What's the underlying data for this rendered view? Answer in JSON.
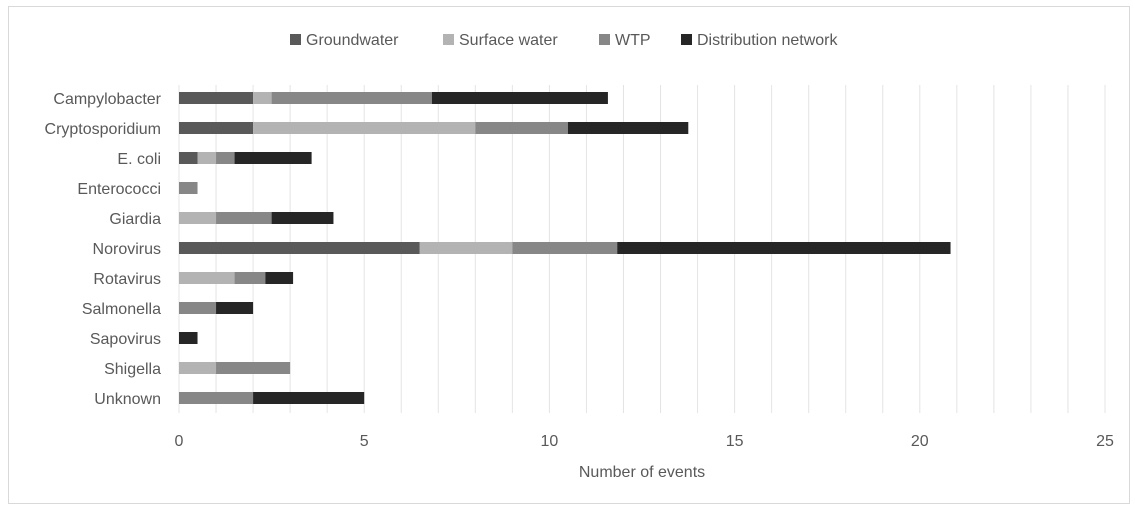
{
  "chart_data": {
    "type": "bar",
    "orientation": "horizontal",
    "stacked": true,
    "title": "",
    "xlabel": "Number of events",
    "ylabel": "",
    "xlim": [
      0,
      25
    ],
    "x_ticks": [
      0,
      5,
      10,
      15,
      20,
      25
    ],
    "grid": "vertical",
    "legend_position": "top",
    "categories": [
      "Campylobacter",
      "Cryptosporidium",
      "E. coli",
      "Enterococci",
      "Giardia",
      "Norovirus",
      "Rotavirus",
      "Salmonella",
      "Sapovirus",
      "Shigella",
      "Unknown"
    ],
    "series": [
      {
        "name": "Groundwater",
        "color": "#595959",
        "values": [
          2,
          2,
          0.5,
          0,
          0,
          6.5,
          0,
          0,
          0,
          0,
          0
        ]
      },
      {
        "name": "Surface water",
        "color": "#b3b3b3",
        "values": [
          0.5,
          6,
          0.5,
          0,
          1,
          2.5,
          1.5,
          0,
          0,
          1,
          0
        ]
      },
      {
        "name": "WTP",
        "color": "#878787",
        "values": [
          4.33,
          2.5,
          0.5,
          0.5,
          1.5,
          2.83,
          0.83,
          1,
          0,
          2,
          2
        ]
      },
      {
        "name": "Distribution network",
        "color": "#262626",
        "values": [
          4.75,
          3.25,
          2.08,
          0,
          1.67,
          9,
          0.75,
          1,
          0.5,
          0,
          3
        ]
      }
    ]
  }
}
